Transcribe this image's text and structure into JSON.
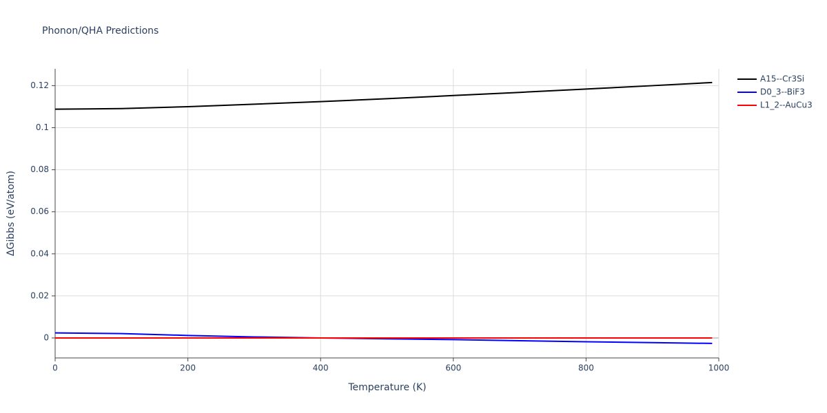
{
  "chart_data": {
    "type": "line",
    "title": "Phonon/QHA Predictions",
    "x_label": "Temperature (K)",
    "y_label": "ΔGibbs (eV/atom)",
    "x": [
      0,
      100,
      200,
      300,
      400,
      500,
      600,
      700,
      800,
      900,
      990
    ],
    "series": [
      {
        "name": "A15--Cr3Si",
        "color": "#000000",
        "values": [
          0.1088,
          0.1091,
          0.11,
          0.1112,
          0.1124,
          0.1138,
          0.1153,
          0.1168,
          0.1184,
          0.12,
          0.1215
        ]
      },
      {
        "name": "D0_3--BiF3",
        "color": "#0000ff",
        "values": [
          0.0024,
          0.0021,
          0.0012,
          0.0005,
          0.0,
          -0.0004,
          -0.0008,
          -0.0013,
          -0.0018,
          -0.0022,
          -0.0026
        ]
      },
      {
        "name": "L1_2--AuCu3",
        "color": "#ff0000",
        "values": [
          0,
          0,
          0,
          0,
          0,
          0,
          0,
          0,
          0,
          0,
          0
        ]
      }
    ],
    "xlim": [
      0,
      1000
    ],
    "ylim": [
      -0.0095,
      0.128
    ],
    "xticks": [
      0,
      200,
      400,
      600,
      800,
      1000
    ],
    "yticks": [
      0,
      0.02,
      0.04,
      0.06,
      0.08,
      0.1,
      0.12
    ],
    "grid": true,
    "legend": "right"
  }
}
